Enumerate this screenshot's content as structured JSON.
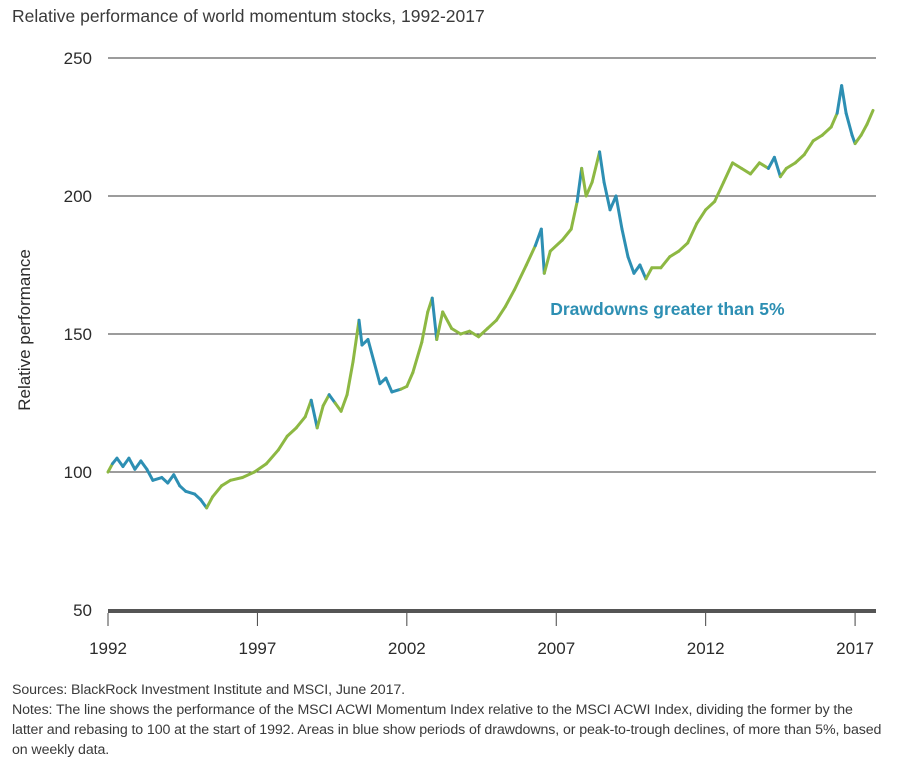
{
  "chart_data": {
    "type": "line",
    "title": "Relative performance of world momentum stocks, 1992-2017",
    "xlabel": "",
    "ylabel": "Relative performance",
    "xlim": [
      1992,
      2017.7
    ],
    "ylim": [
      50,
      250
    ],
    "yticks": [
      50,
      100,
      150,
      200,
      250
    ],
    "xticks": [
      1992,
      1997,
      2002,
      2007,
      2012,
      2017
    ],
    "grid": "horizontal",
    "colors": {
      "normal": "#8db843",
      "drawdown": "#2d8fb3",
      "grid": "#3a3a3a",
      "axis": "#555555"
    },
    "annotation": {
      "text": "Drawdowns greater than 5%",
      "color": "#2d8fb3",
      "x": 2007.0,
      "y": 159
    },
    "series": [
      {
        "name": "MSCI ACWI Momentum Index relative to MSCI ACWI Index",
        "points": [
          [
            1992.0,
            100,
            "n"
          ],
          [
            1992.15,
            103,
            "n"
          ],
          [
            1992.3,
            105,
            "d"
          ],
          [
            1992.5,
            102,
            "d"
          ],
          [
            1992.7,
            105,
            "d"
          ],
          [
            1992.9,
            101,
            "d"
          ],
          [
            1993.1,
            104,
            "d"
          ],
          [
            1993.3,
            101,
            "d"
          ],
          [
            1993.5,
            97,
            "d"
          ],
          [
            1993.8,
            98,
            "d"
          ],
          [
            1994.0,
            96,
            "d"
          ],
          [
            1994.2,
            99,
            "d"
          ],
          [
            1994.4,
            95,
            "d"
          ],
          [
            1994.6,
            93,
            "d"
          ],
          [
            1994.9,
            92,
            "d"
          ],
          [
            1995.1,
            90,
            "d"
          ],
          [
            1995.3,
            87,
            "d"
          ],
          [
            1995.5,
            91,
            "n"
          ],
          [
            1995.8,
            95,
            "n"
          ],
          [
            1996.1,
            97,
            "n"
          ],
          [
            1996.5,
            98,
            "n"
          ],
          [
            1996.9,
            100,
            "n"
          ],
          [
            1997.3,
            103,
            "n"
          ],
          [
            1997.7,
            108,
            "n"
          ],
          [
            1998.0,
            113,
            "n"
          ],
          [
            1998.3,
            116,
            "n"
          ],
          [
            1998.6,
            120,
            "n"
          ],
          [
            1998.8,
            126,
            "n"
          ],
          [
            1999.0,
            116,
            "d"
          ],
          [
            1999.2,
            124,
            "n"
          ],
          [
            1999.4,
            128,
            "n"
          ],
          [
            1999.6,
            125,
            "d"
          ],
          [
            1999.8,
            122,
            "n"
          ],
          [
            2000.0,
            128,
            "n"
          ],
          [
            2000.2,
            140,
            "n"
          ],
          [
            2000.4,
            155,
            "n"
          ],
          [
            2000.5,
            146,
            "d"
          ],
          [
            2000.7,
            148,
            "d"
          ],
          [
            2000.9,
            140,
            "d"
          ],
          [
            2001.1,
            132,
            "d"
          ],
          [
            2001.3,
            134,
            "d"
          ],
          [
            2001.5,
            129,
            "d"
          ],
          [
            2001.8,
            130,
            "d"
          ],
          [
            2002.0,
            131,
            "n"
          ],
          [
            2002.2,
            136,
            "n"
          ],
          [
            2002.5,
            147,
            "n"
          ],
          [
            2002.7,
            158,
            "n"
          ],
          [
            2002.85,
            163,
            "n"
          ],
          [
            2003.0,
            148,
            "d"
          ],
          [
            2003.2,
            158,
            "n"
          ],
          [
            2003.5,
            152,
            "n"
          ],
          [
            2003.8,
            150,
            "n"
          ],
          [
            2004.1,
            151,
            "n"
          ],
          [
            2004.4,
            149,
            "n"
          ],
          [
            2004.7,
            152,
            "n"
          ],
          [
            2005.0,
            155,
            "n"
          ],
          [
            2005.3,
            160,
            "n"
          ],
          [
            2005.6,
            166,
            "n"
          ],
          [
            2006.0,
            175,
            "n"
          ],
          [
            2006.3,
            182,
            "n"
          ],
          [
            2006.5,
            188,
            "d"
          ],
          [
            2006.6,
            172,
            "d"
          ],
          [
            2006.8,
            180,
            "n"
          ],
          [
            2007.2,
            184,
            "n"
          ],
          [
            2007.5,
            188,
            "n"
          ],
          [
            2007.7,
            198,
            "n"
          ],
          [
            2007.85,
            210,
            "d"
          ],
          [
            2008.0,
            200,
            "n"
          ],
          [
            2008.2,
            205,
            "n"
          ],
          [
            2008.45,
            216,
            "n"
          ],
          [
            2008.6,
            205,
            "d"
          ],
          [
            2008.8,
            195,
            "d"
          ],
          [
            2009.0,
            200,
            "d"
          ],
          [
            2009.2,
            188,
            "d"
          ],
          [
            2009.4,
            178,
            "d"
          ],
          [
            2009.6,
            172,
            "d"
          ],
          [
            2009.8,
            175,
            "d"
          ],
          [
            2010.0,
            170,
            "d"
          ],
          [
            2010.2,
            174,
            "n"
          ],
          [
            2010.5,
            174,
            "n"
          ],
          [
            2010.8,
            178,
            "n"
          ],
          [
            2011.1,
            180,
            "n"
          ],
          [
            2011.4,
            183,
            "n"
          ],
          [
            2011.7,
            190,
            "n"
          ],
          [
            2012.0,
            195,
            "n"
          ],
          [
            2012.3,
            198,
            "n"
          ],
          [
            2012.6,
            205,
            "n"
          ],
          [
            2012.9,
            212,
            "n"
          ],
          [
            2013.2,
            210,
            "n"
          ],
          [
            2013.5,
            208,
            "n"
          ],
          [
            2013.8,
            212,
            "n"
          ],
          [
            2014.1,
            210,
            "n"
          ],
          [
            2014.3,
            214,
            "d"
          ],
          [
            2014.5,
            207,
            "d"
          ],
          [
            2014.7,
            210,
            "n"
          ],
          [
            2015.0,
            212,
            "n"
          ],
          [
            2015.3,
            215,
            "n"
          ],
          [
            2015.6,
            220,
            "n"
          ],
          [
            2015.9,
            222,
            "n"
          ],
          [
            2016.2,
            225,
            "n"
          ],
          [
            2016.4,
            230,
            "n"
          ],
          [
            2016.55,
            240,
            "d"
          ],
          [
            2016.7,
            230,
            "d"
          ],
          [
            2016.9,
            222,
            "d"
          ],
          [
            2017.0,
            219,
            "d"
          ],
          [
            2017.2,
            222,
            "n"
          ],
          [
            2017.4,
            226,
            "n"
          ],
          [
            2017.6,
            231,
            "n"
          ]
        ]
      }
    ]
  },
  "notes": {
    "sources": "Sources: BlackRock Investment Institute and MSCI, June 2017.",
    "notes": "Notes: The line shows the performance of the MSCI ACWI Momentum Index relative to the MSCI ACWI Index, dividing the former by the latter and rebasing to 100 at the start of 1992. Areas in blue show periods of drawdowns, or peak-to-trough declines, of more than 5%, based on weekly data."
  }
}
